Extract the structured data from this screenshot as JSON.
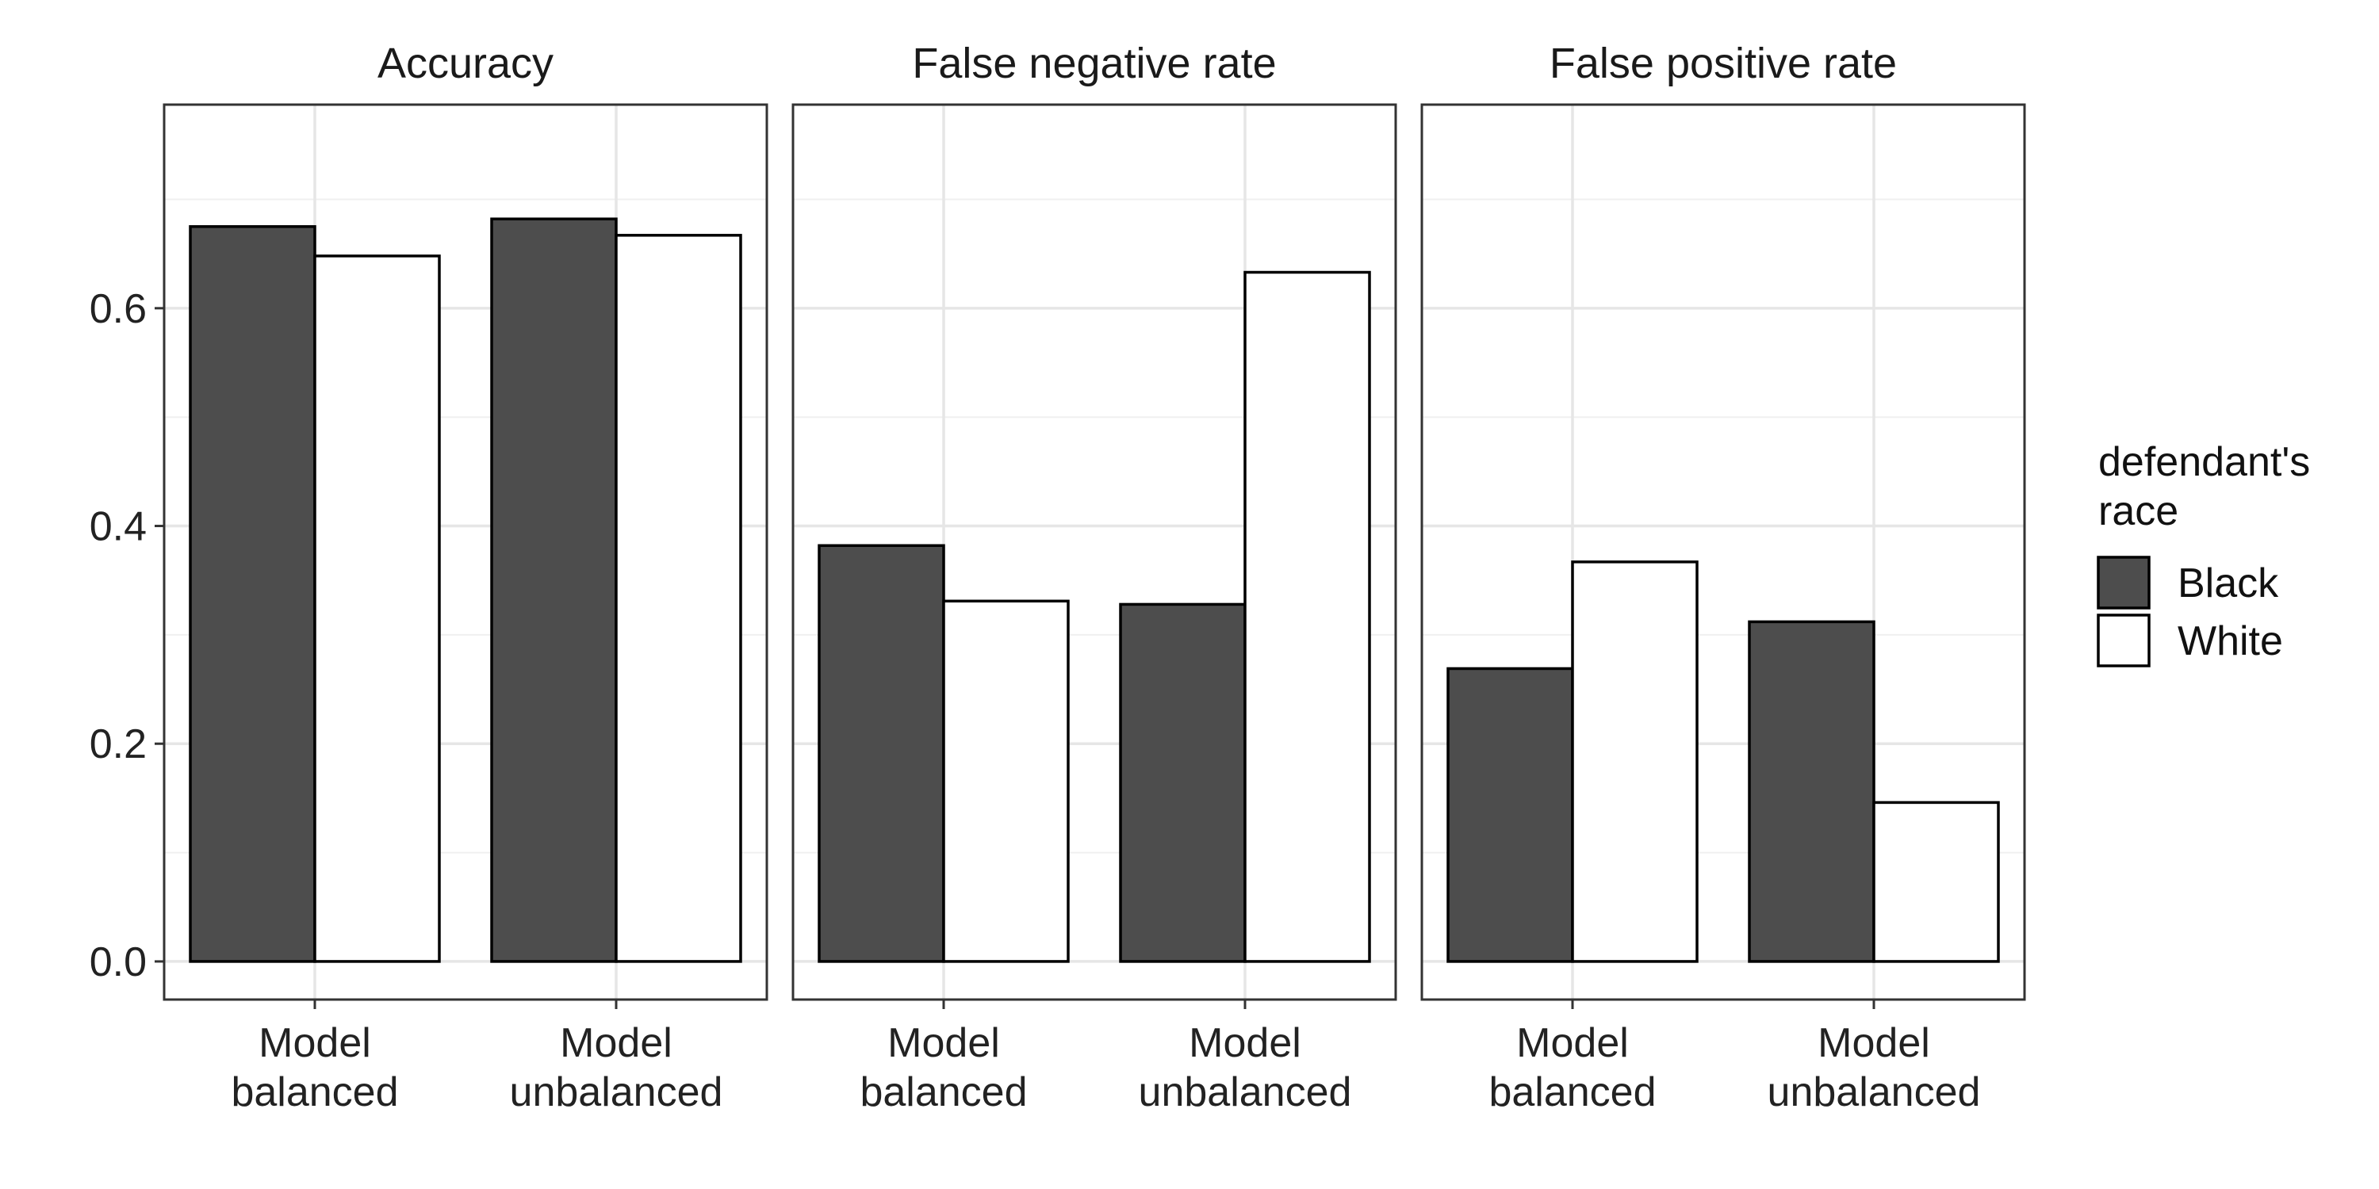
{
  "chart_data": {
    "type": "bar",
    "facets": [
      "Accuracy",
      "False negative rate",
      "False positive rate"
    ],
    "categories": [
      [
        "Model",
        "balanced"
      ],
      [
        "Model",
        "unbalanced"
      ]
    ],
    "series": [
      {
        "name": "Black",
        "color": "#4d4d4d",
        "values": [
          [
            0.675,
            0.682
          ],
          [
            0.382,
            0.328
          ],
          [
            0.269,
            0.312
          ]
        ]
      },
      {
        "name": "White",
        "color": "#ffffff",
        "values": [
          [
            0.648,
            0.667
          ],
          [
            0.331,
            0.633
          ],
          [
            0.367,
            0.146
          ]
        ]
      }
    ],
    "y_ticks": [
      "0.0",
      "0.2",
      "0.4",
      "0.6"
    ],
    "y_tick_values": [
      0,
      0.2,
      0.4,
      0.6
    ],
    "ylim": [
      -0.035,
      0.787
    ],
    "grid": true,
    "xlabel": "",
    "ylabel": "",
    "legend": {
      "title_lines": [
        "defendant's",
        "race"
      ],
      "placement": "right"
    }
  }
}
